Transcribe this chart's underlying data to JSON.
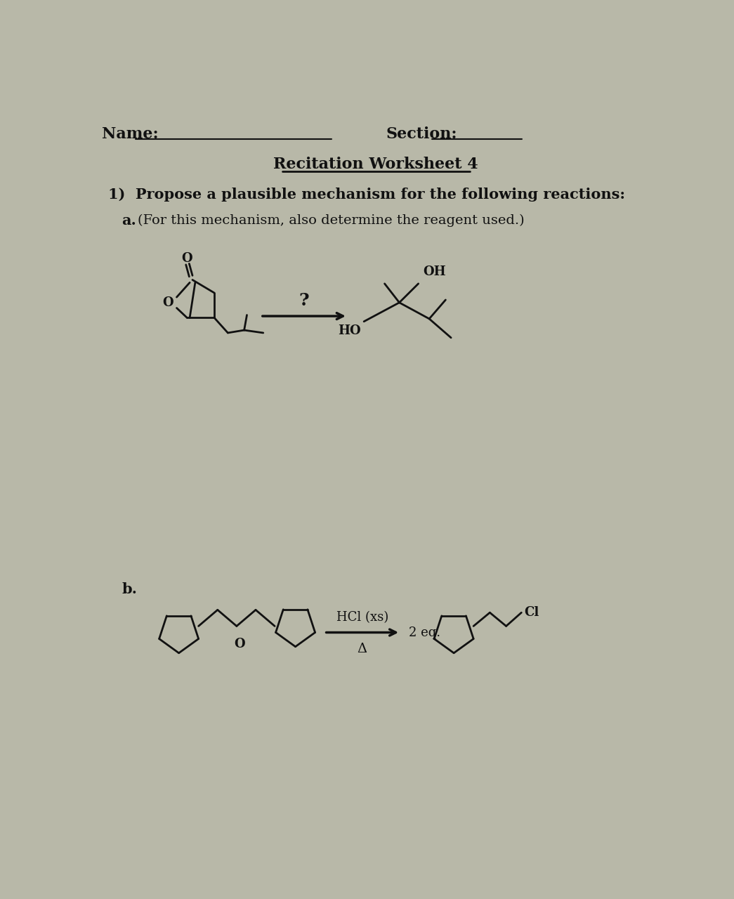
{
  "title": "Recitation Worksheet 4",
  "name_label": "Name:",
  "section_label": "Section:",
  "q1_text": "1)  Propose a plausible mechanism for the following reactions:",
  "a_label": "a.",
  "a_subtext": "(For this mechanism, also determine the reagent used.)",
  "b_label": "b.",
  "reagent_a": "?",
  "reagent_b_line1": "HCl (xs)",
  "reagent_b_line2": "Δ",
  "eq_label": "2 eq.",
  "oh_label": "OH",
  "ho_label": "HO",
  "o_label": "O",
  "cl_label": "Cl",
  "bg_color": "#b8b8a8",
  "text_color": "#111111",
  "line_color": "#111111",
  "figsize": [
    10.45,
    12.8
  ],
  "dpi": 100
}
